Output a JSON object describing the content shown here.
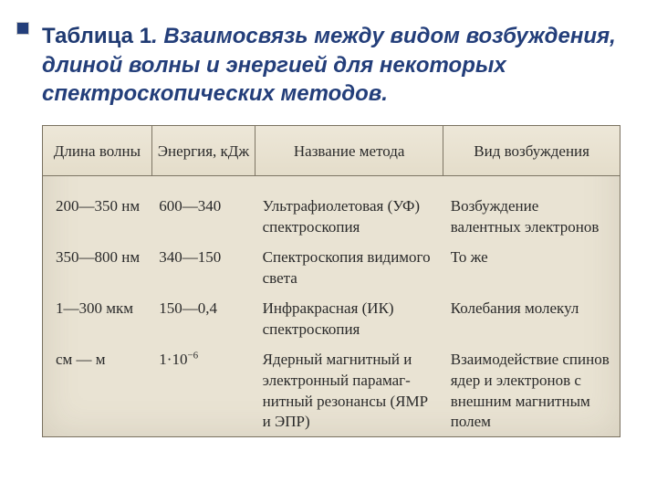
{
  "title": {
    "label": "Таблица 1",
    "dot": ". ",
    "rest": "Взаимосвязь между видом возбуждения, длиной волны и энергией для некоторых спектроскопических методов.",
    "color": "#233e7a",
    "font_size": 24
  },
  "table": {
    "background": "#e9e3d3",
    "text_color": "#2a2a2a",
    "border_color": "#7d7564",
    "columns": [
      {
        "key": "wavelength",
        "label": "Длина волны"
      },
      {
        "key": "energy",
        "label": "Энергия, кДж"
      },
      {
        "key": "method",
        "label": "Название метода"
      },
      {
        "key": "excitation",
        "label": "Вид возбуждения"
      }
    ],
    "rows": [
      {
        "wavelength": "200—350 нм",
        "energy": "600—340",
        "method": "Ультрафиолетовая (УФ) спектроскопия",
        "excitation": "Возбуждение валентных электронов"
      },
      {
        "wavelength": "350—800 нм",
        "energy": "340—150",
        "method": "Спектроскопия видимо­го света",
        "excitation": "То же"
      },
      {
        "wavelength": "1—300 мкм",
        "energy": "150—0,4",
        "method": "Инфракрасная      (ИК) спектроскопия",
        "excitation": "Колебания молекул"
      },
      {
        "wavelength": "см — м",
        "energy_html": "1·10<sup>−6</sup>",
        "method": "Ядерный магнитный и электронный парамаг­нитный резонансы (ЯМР и ЭПР)",
        "excitation": "Взаимодействие спинов ядер и электронов с внешним магнитным по­лем"
      }
    ]
  }
}
